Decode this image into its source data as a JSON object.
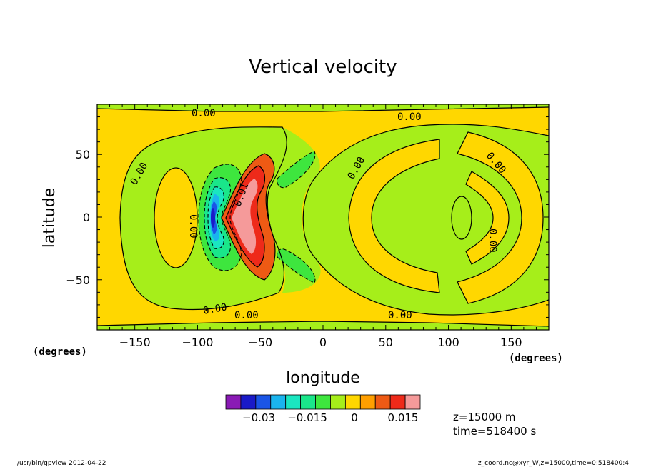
{
  "chart_data": {
    "type": "contour",
    "title": "Vertical velocity",
    "xlabel": "longitude",
    "ylabel": "latitude",
    "x_unit": "(degrees)",
    "y_unit": "(degrees)",
    "xlim": [
      -180,
      180
    ],
    "ylim": [
      -90,
      90
    ],
    "x_ticks": [
      -150,
      -100,
      -50,
      0,
      50,
      100,
      150
    ],
    "y_ticks": [
      50,
      0,
      -50
    ],
    "x_tick_labels": [
      "−150",
      "−100",
      "−50",
      "0",
      "50",
      "100",
      "150"
    ],
    "y_tick_labels": [
      "50",
      "0",
      "−50"
    ],
    "contour_labels": [
      "0.00",
      "0.00",
      "0.00",
      "0.00",
      "0.00",
      "0.00",
      "0.00",
      "0.00",
      "0.00",
      "0.01"
    ],
    "colorbar": {
      "colors": [
        "#8a1ab5",
        "#1a1ac8",
        "#1a55e6",
        "#1ab4ee",
        "#1ae6c0",
        "#1ae68a",
        "#3ee63e",
        "#a6ee1a",
        "#ffd700",
        "#ff9f00",
        "#ee5a14",
        "#ee2a1a",
        "#f59a9a"
      ],
      "tick_labels": [
        "−0.03",
        "−0.015",
        "0",
        "0.015"
      ]
    },
    "annotations": [
      "z=15000  m",
      "time=518400  s"
    ]
  },
  "footer": {
    "left": "/usr/bin/gpview  2012-04-22",
    "right": "z_coord.nc@xyr_W,z=15000,time=0:518400:4"
  }
}
